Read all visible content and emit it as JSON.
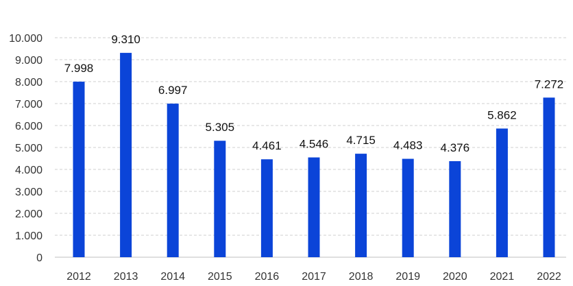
{
  "chart_data": {
    "type": "bar",
    "categories": [
      "2012",
      "2013",
      "2014",
      "2015",
      "2016",
      "2017",
      "2018",
      "2019",
      "2020",
      "2021",
      "2022"
    ],
    "values": [
      7998,
      9310,
      6997,
      5305,
      4461,
      4546,
      4715,
      4483,
      4376,
      5862,
      7272
    ],
    "value_labels": [
      "7.998",
      "9.310",
      "6.997",
      "5.305",
      "4.461",
      "4.546",
      "4.715",
      "4.483",
      "4.376",
      "5.862",
      "7.272"
    ],
    "y_ticks": [
      0,
      1000,
      2000,
      3000,
      4000,
      5000,
      6000,
      7000,
      8000,
      9000,
      10000
    ],
    "y_tick_labels": [
      "0",
      "1.000",
      "2.000",
      "3.000",
      "4.000",
      "5.000",
      "6.000",
      "7.000",
      "8.000",
      "9.000",
      "10.000"
    ],
    "ylim": [
      0,
      10000
    ],
    "grid": true,
    "bar_color": "#0b44d8",
    "title": "",
    "xlabel": "",
    "ylabel": ""
  }
}
